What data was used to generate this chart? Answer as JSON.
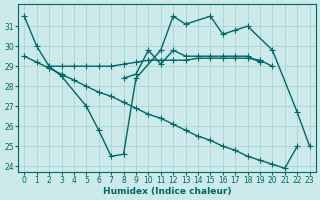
{
  "xlabel": "Humidex (Indice chaleur)",
  "ylabel": "",
  "bg_color": "#cceaea",
  "line_color": "#006666",
  "grid_color": "#aad4d4",
  "xlim": [
    -0.5,
    23.5
  ],
  "ylim": [
    23.7,
    32.1
  ],
  "yticks": [
    24,
    25,
    26,
    27,
    28,
    29,
    30,
    31
  ],
  "xticks": [
    0,
    1,
    2,
    3,
    4,
    5,
    6,
    7,
    8,
    9,
    10,
    11,
    12,
    13,
    14,
    15,
    16,
    17,
    18,
    19,
    20,
    21,
    22,
    23
  ],
  "lines": [
    {
      "x": [
        0,
        1,
        2,
        3,
        5,
        6,
        7,
        8,
        9,
        11,
        12,
        13,
        15,
        16,
        17,
        18,
        20,
        22,
        23
      ],
      "y": [
        31.5,
        30.0,
        29.0,
        28.5,
        27.0,
        25.8,
        24.5,
        24.6,
        28.4,
        29.8,
        31.5,
        31.1,
        31.5,
        30.6,
        30.8,
        31.0,
        29.8,
        26.7,
        25.0
      ]
    },
    {
      "x": [
        2,
        3,
        4,
        5,
        6,
        7,
        8,
        9,
        10,
        11,
        12,
        13,
        14,
        15,
        16,
        17,
        18,
        19,
        20
      ],
      "y": [
        29.0,
        29.0,
        29.0,
        29.0,
        29.0,
        29.0,
        29.1,
        29.2,
        29.3,
        29.3,
        29.3,
        29.3,
        29.4,
        29.4,
        29.4,
        29.4,
        29.4,
        29.3,
        29.0
      ]
    },
    {
      "x": [
        8,
        9,
        10,
        11,
        12,
        13,
        14,
        15,
        16,
        17,
        18,
        19
      ],
      "y": [
        28.4,
        28.6,
        29.8,
        29.1,
        29.8,
        29.5,
        29.5,
        29.5,
        29.5,
        29.5,
        29.5,
        29.2
      ]
    },
    {
      "x": [
        0,
        1,
        2,
        3,
        4,
        5,
        6,
        7,
        8,
        9,
        10,
        11,
        12,
        13,
        14,
        15,
        16,
        17,
        18,
        19,
        20,
        21,
        22,
        23
      ],
      "y": [
        29.5,
        29.2,
        28.9,
        28.6,
        28.3,
        28.0,
        27.7,
        27.5,
        27.2,
        26.9,
        26.6,
        26.4,
        26.1,
        25.8,
        25.5,
        25.3,
        25.0,
        24.8,
        24.5,
        24.3,
        24.1,
        23.9,
        25.0,
        null
      ]
    }
  ],
  "marker": "+",
  "markersize": 4,
  "linewidth": 1.0
}
